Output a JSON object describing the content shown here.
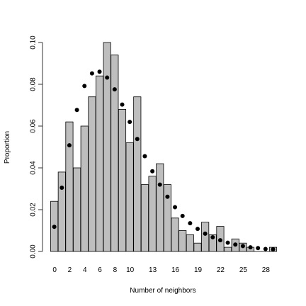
{
  "chart_data": {
    "type": "bar",
    "xlabel": "Number of neighbors",
    "ylabel": "Proportion",
    "ylim": [
      0,
      0.1
    ],
    "yticks": [
      0.0,
      0.02,
      0.04,
      0.06,
      0.08,
      0.1
    ],
    "ytick_labels": [
      "0.00",
      "0.02",
      "0.04",
      "0.06",
      "0.08",
      "0.10"
    ],
    "categories": [
      0,
      1,
      2,
      3,
      4,
      5,
      6,
      7,
      8,
      9,
      10,
      11,
      12,
      13,
      14,
      15,
      16,
      17,
      18,
      19,
      20,
      21,
      22,
      23,
      24,
      25,
      26,
      27,
      28,
      29
    ],
    "xtick_labels": [
      {
        "index": 0,
        "label": "0"
      },
      {
        "index": 2,
        "label": "2"
      },
      {
        "index": 4,
        "label": "4"
      },
      {
        "index": 6,
        "label": "6"
      },
      {
        "index": 8,
        "label": "8"
      },
      {
        "index": 10,
        "label": "10"
      },
      {
        "index": 13,
        "label": "13"
      },
      {
        "index": 16,
        "label": "16"
      },
      {
        "index": 19,
        "label": "19"
      },
      {
        "index": 22,
        "label": "22"
      },
      {
        "index": 25,
        "label": "25"
      },
      {
        "index": 28,
        "label": "28"
      }
    ],
    "series": [
      {
        "type": "bar",
        "values": [
          0.024,
          0.038,
          0.062,
          0.04,
          0.06,
          0.074,
          0.084,
          0.1,
          0.094,
          0.068,
          0.052,
          0.074,
          0.032,
          0.036,
          0.042,
          0.032,
          0.016,
          0.01,
          0.008,
          0.004,
          0.014,
          0.008,
          0.012,
          0.002,
          0.006,
          0.004,
          0.002,
          0.0,
          0.0,
          0.002
        ],
        "color": "#bebebe"
      },
      {
        "type": "scatter",
        "values": [
          0.0118,
          0.0305,
          0.0508,
          0.0677,
          0.0792,
          0.0852,
          0.086,
          0.0832,
          0.0776,
          0.0703,
          0.062,
          0.0538,
          0.0456,
          0.0384,
          0.032,
          0.0262,
          0.0212,
          0.017,
          0.0135,
          0.0108,
          0.0085,
          0.0068,
          0.0054,
          0.0042,
          0.0033,
          0.0026,
          0.002,
          0.0016,
          0.0012,
          0.001
        ],
        "color": "#000000"
      }
    ]
  }
}
